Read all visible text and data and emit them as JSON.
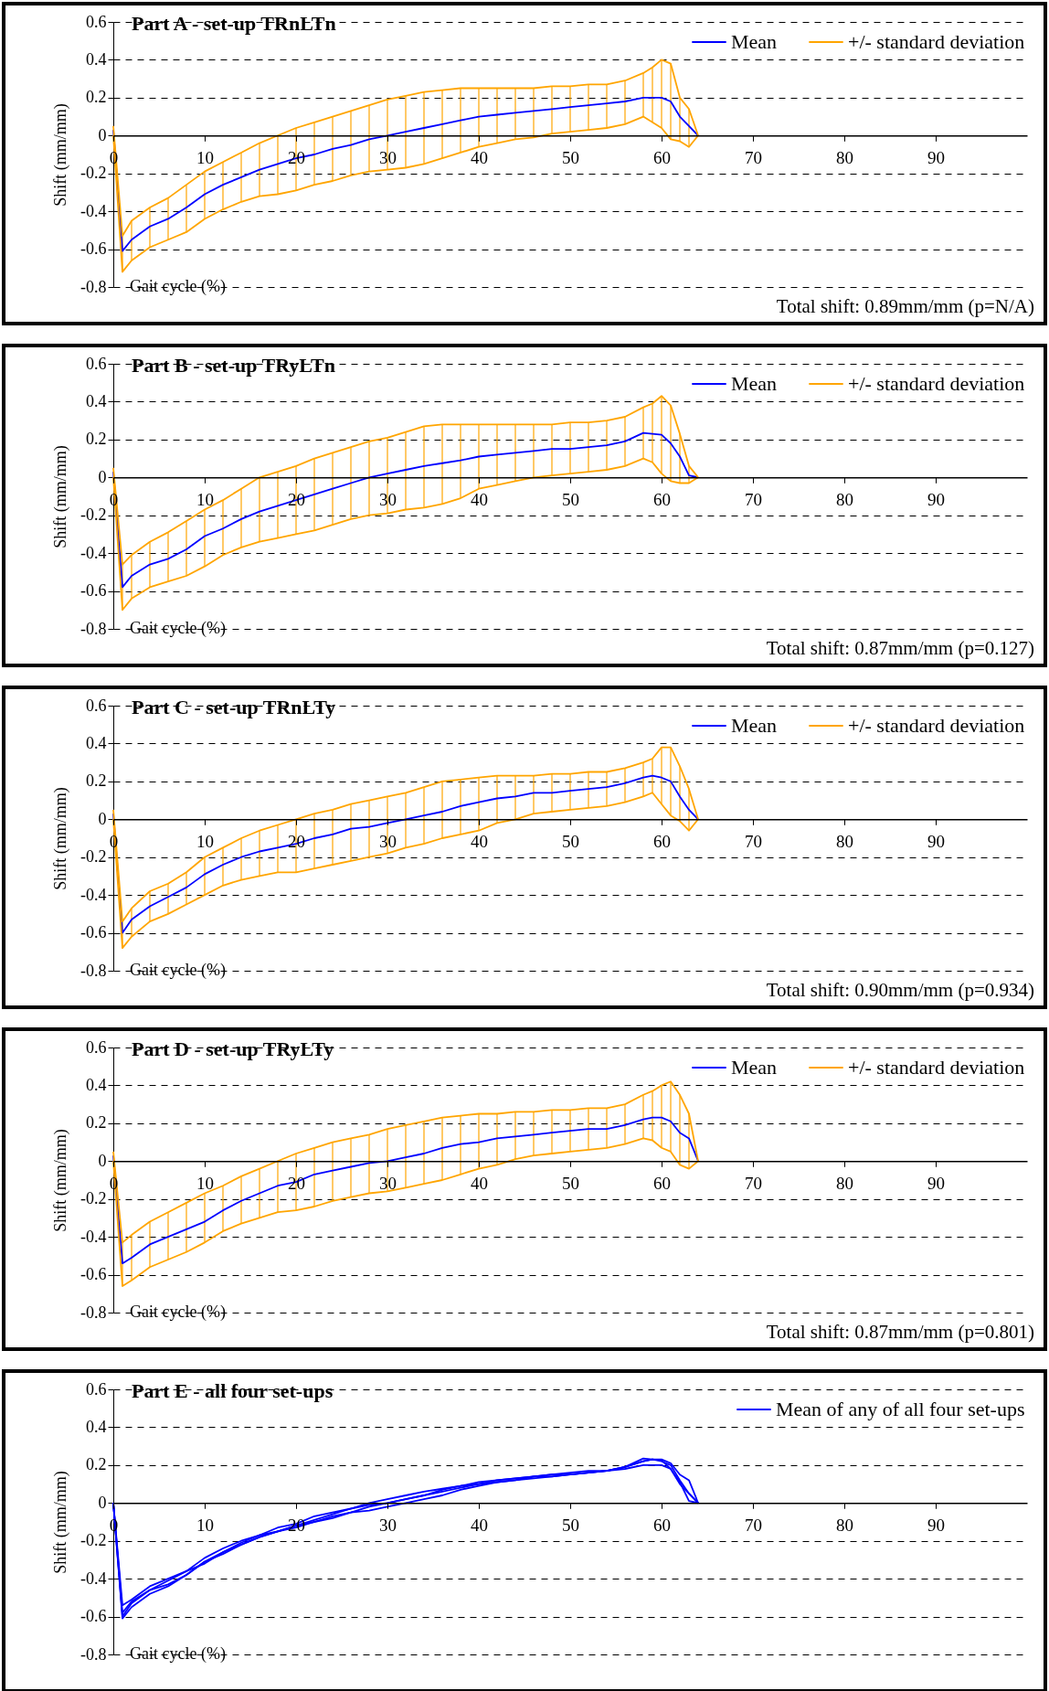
{
  "chart_data": [
    {
      "type": "line",
      "title": "Part A - set-up TRnLTn",
      "xlabel": "Gait cycle (%)",
      "ylabel": "Shift (mm/mm)",
      "annotations": [
        "Total shift:   0.89mm/mm   (p=N/A)"
      ],
      "x": [
        0,
        1,
        2,
        4,
        6,
        8,
        10,
        12,
        14,
        16,
        18,
        20,
        22,
        24,
        26,
        28,
        30,
        32,
        34,
        36,
        38,
        40,
        42,
        44,
        46,
        48,
        50,
        52,
        54,
        56,
        58,
        59,
        60,
        61,
        62,
        63,
        64
      ],
      "series": [
        {
          "name": "Mean",
          "color": "#0000ff",
          "values": [
            0.03,
            -0.61,
            -0.55,
            -0.48,
            -0.44,
            -0.38,
            -0.31,
            -0.26,
            -0.22,
            -0.18,
            -0.15,
            -0.12,
            -0.1,
            -0.07,
            -0.05,
            -0.02,
            0.0,
            0.02,
            0.04,
            0.06,
            0.08,
            0.1,
            0.11,
            0.12,
            0.13,
            0.14,
            0.15,
            0.16,
            0.17,
            0.18,
            0.2,
            0.2,
            0.2,
            0.18,
            0.1,
            0.05,
            0.0
          ]
        },
        {
          "name": "+/- standard deviation",
          "color": "#ffa500",
          "values": [
            0.05,
            -0.53,
            -0.45,
            -0.38,
            -0.33,
            -0.26,
            -0.19,
            -0.14,
            -0.09,
            -0.04,
            0.0,
            0.04,
            0.07,
            0.1,
            0.13,
            0.16,
            0.19,
            0.21,
            0.23,
            0.24,
            0.25,
            0.25,
            0.25,
            0.25,
            0.25,
            0.26,
            0.26,
            0.27,
            0.27,
            0.29,
            0.33,
            0.36,
            0.4,
            0.38,
            0.2,
            0.14,
            0.0
          ],
          "errors": [
            null,
            [
              -0.72,
              -0.53
            ],
            [
              -0.66,
              -0.45
            ],
            [
              -0.59,
              -0.38
            ],
            [
              -0.55,
              -0.33
            ],
            [
              -0.51,
              -0.26
            ],
            [
              -0.44,
              -0.19
            ],
            [
              -0.39,
              -0.14
            ],
            [
              -0.35,
              -0.09
            ],
            [
              -0.32,
              -0.04
            ],
            [
              -0.31,
              0.0
            ],
            [
              -0.29,
              0.04
            ],
            [
              -0.26,
              0.07
            ],
            [
              -0.24,
              0.1
            ],
            [
              -0.21,
              0.13
            ],
            [
              -0.19,
              0.16
            ],
            [
              -0.18,
              0.19
            ],
            [
              -0.17,
              0.21
            ],
            [
              -0.15,
              0.23
            ],
            [
              -0.12,
              0.24
            ],
            [
              -0.09,
              0.25
            ],
            [
              -0.06,
              0.25
            ],
            [
              -0.04,
              0.25
            ],
            [
              -0.02,
              0.25
            ],
            [
              -0.01,
              0.25
            ],
            [
              0.01,
              0.26
            ],
            [
              0.02,
              0.26
            ],
            [
              0.03,
              0.27
            ],
            [
              0.04,
              0.27
            ],
            [
              0.06,
              0.29
            ],
            [
              0.1,
              0.33
            ],
            [
              0.07,
              0.36
            ],
            [
              0.04,
              0.4
            ],
            [
              -0.02,
              0.38
            ],
            [
              -0.03,
              0.2
            ],
            [
              -0.06,
              0.14
            ],
            null
          ]
        },
        {
          "color": "#ffa500",
          "values": [
            0.0,
            -0.72,
            -0.66,
            -0.59,
            -0.55,
            -0.51,
            -0.44,
            -0.39,
            -0.35,
            -0.32,
            -0.31,
            -0.29,
            -0.26,
            -0.24,
            -0.21,
            -0.19,
            -0.18,
            -0.17,
            -0.15,
            -0.12,
            -0.09,
            -0.06,
            -0.04,
            -0.02,
            -0.01,
            0.01,
            0.02,
            0.03,
            0.04,
            0.06,
            0.1,
            0.07,
            0.04,
            -0.02,
            -0.03,
            -0.06,
            0.0
          ]
        }
      ],
      "xlim": [
        0,
        100
      ],
      "xticks": [
        0,
        10,
        20,
        30,
        40,
        50,
        60,
        70,
        80,
        90
      ],
      "ylim": [
        -0.8,
        0.6
      ],
      "yticks": [
        -0.8,
        -0.6,
        -0.4,
        -0.2,
        0,
        0.2,
        0.4,
        0.6
      ],
      "grid": "y",
      "legend": "top right"
    },
    {
      "type": "line",
      "title": "Part B - set-up TRyLTn",
      "xlabel": "Gait cycle (%)",
      "ylabel": "Shift (mm/mm)",
      "annotations": [
        "Total shift:   0.87mm/mm   (p=0.127)"
      ],
      "x": [
        0,
        1,
        2,
        4,
        6,
        8,
        10,
        12,
        14,
        16,
        18,
        20,
        22,
        24,
        26,
        28,
        30,
        32,
        34,
        36,
        38,
        40,
        42,
        44,
        46,
        48,
        50,
        52,
        54,
        56,
        58,
        59,
        60,
        61,
        62,
        63,
        64
      ],
      "series": [
        {
          "name": "Mean",
          "color": "#0000ff",
          "values": [
            0.03,
            -0.58,
            -0.52,
            -0.46,
            -0.43,
            -0.38,
            -0.31,
            -0.27,
            -0.22,
            -0.18,
            -0.15,
            -0.12,
            -0.09,
            -0.06,
            -0.03,
            0.0,
            0.02,
            0.04,
            0.06,
            0.075,
            0.09,
            0.11,
            0.12,
            0.13,
            0.14,
            0.15,
            0.15,
            0.16,
            0.17,
            0.19,
            0.235,
            0.23,
            0.225,
            0.18,
            0.11,
            0.01,
            0.0
          ]
        },
        {
          "name": "+/- standard deviation",
          "color": "#ffa500",
          "values": [
            0.05,
            -0.46,
            -0.41,
            -0.34,
            -0.29,
            -0.23,
            -0.17,
            -0.12,
            -0.06,
            0.0,
            0.03,
            0.06,
            0.1,
            0.13,
            0.16,
            0.19,
            0.21,
            0.24,
            0.27,
            0.28,
            0.28,
            0.28,
            0.28,
            0.28,
            0.28,
            0.28,
            0.29,
            0.29,
            0.3,
            0.32,
            0.37,
            0.39,
            0.43,
            0.38,
            0.23,
            0.06,
            0.0
          ],
          "errors": [
            null,
            [
              -0.7,
              -0.46
            ],
            [
              -0.64,
              -0.41
            ],
            [
              -0.58,
              -0.34
            ],
            [
              -0.55,
              -0.29
            ],
            [
              -0.52,
              -0.23
            ],
            [
              -0.47,
              -0.17
            ],
            [
              -0.41,
              -0.12
            ],
            [
              -0.37,
              -0.06
            ],
            [
              -0.34,
              0.0
            ],
            [
              -0.32,
              0.03
            ],
            [
              -0.3,
              0.06
            ],
            [
              -0.28,
              0.1
            ],
            [
              -0.25,
              0.13
            ],
            [
              -0.22,
              0.16
            ],
            [
              -0.2,
              0.19
            ],
            [
              -0.19,
              0.21
            ],
            [
              -0.17,
              0.24
            ],
            [
              -0.16,
              0.27
            ],
            [
              -0.14,
              0.28
            ],
            [
              -0.11,
              0.28
            ],
            [
              -0.06,
              0.28
            ],
            [
              -0.04,
              0.28
            ],
            [
              -0.02,
              0.28
            ],
            [
              0.0,
              0.28
            ],
            [
              0.01,
              0.28
            ],
            [
              0.02,
              0.29
            ],
            [
              0.03,
              0.29
            ],
            [
              0.04,
              0.3
            ],
            [
              0.06,
              0.32
            ],
            [
              0.1,
              0.37
            ],
            [
              0.08,
              0.39
            ],
            [
              0.02,
              0.43
            ],
            [
              -0.02,
              0.38
            ],
            [
              -0.03,
              0.23
            ],
            [
              -0.03,
              0.06
            ],
            null
          ]
        },
        {
          "color": "#ffa500",
          "values": [
            0.0,
            -0.7,
            -0.64,
            -0.58,
            -0.55,
            -0.52,
            -0.47,
            -0.41,
            -0.37,
            -0.34,
            -0.32,
            -0.3,
            -0.28,
            -0.25,
            -0.22,
            -0.2,
            -0.19,
            -0.17,
            -0.16,
            -0.14,
            -0.11,
            -0.06,
            -0.04,
            -0.02,
            0.0,
            0.01,
            0.02,
            0.03,
            0.04,
            0.06,
            0.1,
            0.08,
            0.02,
            -0.02,
            -0.03,
            -0.03,
            0.0
          ]
        }
      ],
      "xlim": [
        0,
        100
      ],
      "xticks": [
        0,
        10,
        20,
        30,
        40,
        50,
        60,
        70,
        80,
        90
      ],
      "ylim": [
        -0.8,
        0.6
      ],
      "yticks": [
        -0.8,
        -0.6,
        -0.4,
        -0.2,
        0,
        0.2,
        0.4,
        0.6
      ],
      "grid": "y",
      "legend": "top right"
    },
    {
      "type": "line",
      "title": "Part C - set-up TRnLTy",
      "xlabel": "Gait cycle (%)",
      "ylabel": "Shift (mm/mm)",
      "annotations": [
        "Total shift:   0.90mm/mm   (p=0.934)"
      ],
      "x": [
        0,
        1,
        2,
        4,
        6,
        8,
        10,
        12,
        14,
        16,
        18,
        20,
        22,
        24,
        26,
        28,
        30,
        32,
        34,
        36,
        38,
        40,
        42,
        44,
        46,
        48,
        50,
        52,
        54,
        56,
        58,
        59,
        60,
        61,
        62,
        63,
        64
      ],
      "series": [
        {
          "name": "Mean",
          "color": "#0000ff",
          "values": [
            0.03,
            -0.6,
            -0.53,
            -0.46,
            -0.41,
            -0.36,
            -0.29,
            -0.24,
            -0.2,
            -0.17,
            -0.15,
            -0.13,
            -0.1,
            -0.08,
            -0.05,
            -0.04,
            -0.02,
            0.0,
            0.02,
            0.04,
            0.07,
            0.09,
            0.11,
            0.12,
            0.14,
            0.14,
            0.15,
            0.16,
            0.17,
            0.19,
            0.22,
            0.23,
            0.22,
            0.2,
            0.12,
            0.05,
            0.0
          ]
        },
        {
          "name": "+/- standard deviation",
          "color": "#ffa500",
          "values": [
            0.05,
            -0.54,
            -0.47,
            -0.38,
            -0.34,
            -0.28,
            -0.2,
            -0.15,
            -0.1,
            -0.06,
            -0.03,
            0.0,
            0.03,
            0.05,
            0.08,
            0.1,
            0.12,
            0.14,
            0.17,
            0.2,
            0.21,
            0.22,
            0.23,
            0.23,
            0.23,
            0.24,
            0.24,
            0.25,
            0.25,
            0.27,
            0.3,
            0.32,
            0.38,
            0.38,
            0.28,
            0.16,
            0.0
          ],
          "errors": [
            null,
            [
              -0.68,
              -0.54
            ],
            [
              -0.62,
              -0.47
            ],
            [
              -0.54,
              -0.38
            ],
            [
              -0.5,
              -0.34
            ],
            [
              -0.45,
              -0.28
            ],
            [
              -0.4,
              -0.2
            ],
            [
              -0.35,
              -0.15
            ],
            [
              -0.32,
              -0.1
            ],
            [
              -0.3,
              -0.06
            ],
            [
              -0.28,
              -0.03
            ],
            [
              -0.28,
              0.0
            ],
            [
              -0.26,
              0.03
            ],
            [
              -0.24,
              0.05
            ],
            [
              -0.22,
              0.08
            ],
            [
              -0.2,
              0.1
            ],
            [
              -0.18,
              0.12
            ],
            [
              -0.15,
              0.14
            ],
            [
              -0.13,
              0.17
            ],
            [
              -0.1,
              0.2
            ],
            [
              -0.08,
              0.21
            ],
            [
              -0.06,
              0.22
            ],
            [
              -0.02,
              0.23
            ],
            [
              0.0,
              0.23
            ],
            [
              0.03,
              0.23
            ],
            [
              0.04,
              0.24
            ],
            [
              0.05,
              0.24
            ],
            [
              0.06,
              0.25
            ],
            [
              0.07,
              0.25
            ],
            [
              0.09,
              0.27
            ],
            [
              0.12,
              0.3
            ],
            [
              0.14,
              0.32
            ],
            [
              0.08,
              0.38
            ],
            [
              0.02,
              0.38
            ],
            [
              -0.01,
              0.28
            ],
            [
              -0.06,
              0.16
            ],
            null
          ]
        },
        {
          "color": "#ffa500",
          "values": [
            0.0,
            -0.68,
            -0.62,
            -0.54,
            -0.5,
            -0.45,
            -0.4,
            -0.35,
            -0.32,
            -0.3,
            -0.28,
            -0.28,
            -0.26,
            -0.24,
            -0.22,
            -0.2,
            -0.18,
            -0.15,
            -0.13,
            -0.1,
            -0.08,
            -0.06,
            -0.02,
            0.0,
            0.03,
            0.04,
            0.05,
            0.06,
            0.07,
            0.09,
            0.12,
            0.14,
            0.08,
            0.02,
            -0.01,
            -0.06,
            0.0
          ]
        }
      ],
      "xlim": [
        0,
        100
      ],
      "xticks": [
        0,
        10,
        20,
        30,
        40,
        50,
        60,
        70,
        80,
        90
      ],
      "ylim": [
        -0.8,
        0.6
      ],
      "yticks": [
        -0.8,
        -0.6,
        -0.4,
        -0.2,
        0,
        0.2,
        0.4,
        0.6
      ],
      "grid": "y",
      "legend": "top right"
    },
    {
      "type": "line",
      "title": "Part D - set-up TRyLTy",
      "xlabel": "Gait cycle (%)",
      "ylabel": "Shift (mm/mm)",
      "annotations": [
        "Total shift:   0.87mm/mm   (p=0.801)"
      ],
      "x": [
        0,
        1,
        2,
        4,
        6,
        8,
        10,
        12,
        14,
        16,
        18,
        20,
        22,
        24,
        26,
        28,
        30,
        32,
        34,
        36,
        38,
        40,
        42,
        44,
        46,
        48,
        50,
        52,
        54,
        56,
        58,
        59,
        60,
        61,
        62,
        63,
        64
      ],
      "series": [
        {
          "name": "Mean",
          "color": "#0000ff",
          "values": [
            0.03,
            -0.54,
            -0.51,
            -0.44,
            -0.4,
            -0.36,
            -0.32,
            -0.26,
            -0.21,
            -0.17,
            -0.13,
            -0.11,
            -0.07,
            -0.05,
            -0.03,
            -0.01,
            0.0,
            0.02,
            0.04,
            0.07,
            0.09,
            0.1,
            0.12,
            0.13,
            0.14,
            0.15,
            0.16,
            0.17,
            0.17,
            0.19,
            0.22,
            0.23,
            0.23,
            0.21,
            0.15,
            0.12,
            0.0
          ]
        },
        {
          "name": "+/- standard deviation",
          "color": "#ffa500",
          "values": [
            0.05,
            -0.43,
            -0.39,
            -0.32,
            -0.27,
            -0.22,
            -0.17,
            -0.13,
            -0.08,
            -0.04,
            0.0,
            0.04,
            0.07,
            0.1,
            0.12,
            0.14,
            0.17,
            0.19,
            0.21,
            0.23,
            0.24,
            0.25,
            0.25,
            0.26,
            0.26,
            0.27,
            0.27,
            0.28,
            0.28,
            0.3,
            0.35,
            0.37,
            0.4,
            0.42,
            0.35,
            0.25,
            0.0
          ],
          "errors": [
            null,
            [
              -0.66,
              -0.43
            ],
            [
              -0.63,
              -0.39
            ],
            [
              -0.56,
              -0.32
            ],
            [
              -0.52,
              -0.27
            ],
            [
              -0.48,
              -0.22
            ],
            [
              -0.43,
              -0.17
            ],
            [
              -0.37,
              -0.13
            ],
            [
              -0.33,
              -0.08
            ],
            [
              -0.3,
              -0.04
            ],
            [
              -0.27,
              0.0
            ],
            [
              -0.26,
              0.04
            ],
            [
              -0.24,
              0.07
            ],
            [
              -0.21,
              0.1
            ],
            [
              -0.19,
              0.12
            ],
            [
              -0.17,
              0.14
            ],
            [
              -0.16,
              0.17
            ],
            [
              -0.14,
              0.19
            ],
            [
              -0.12,
              0.21
            ],
            [
              -0.1,
              0.23
            ],
            [
              -0.07,
              0.24
            ],
            [
              -0.04,
              0.25
            ],
            [
              -0.02,
              0.25
            ],
            [
              0.01,
              0.26
            ],
            [
              0.03,
              0.26
            ],
            [
              0.04,
              0.27
            ],
            [
              0.05,
              0.27
            ],
            [
              0.06,
              0.28
            ],
            [
              0.07,
              0.28
            ],
            [
              0.09,
              0.3
            ],
            [
              0.12,
              0.35
            ],
            [
              0.11,
              0.37
            ],
            [
              0.07,
              0.4
            ],
            [
              0.05,
              0.42
            ],
            [
              -0.02,
              0.35
            ],
            [
              -0.04,
              0.25
            ],
            null
          ]
        },
        {
          "color": "#ffa500",
          "values": [
            0.0,
            -0.66,
            -0.63,
            -0.56,
            -0.52,
            -0.48,
            -0.43,
            -0.37,
            -0.33,
            -0.3,
            -0.27,
            -0.26,
            -0.24,
            -0.21,
            -0.19,
            -0.17,
            -0.16,
            -0.14,
            -0.12,
            -0.1,
            -0.07,
            -0.04,
            -0.02,
            0.01,
            0.03,
            0.04,
            0.05,
            0.06,
            0.07,
            0.09,
            0.12,
            0.11,
            0.07,
            0.05,
            -0.02,
            -0.04,
            0.0
          ]
        }
      ],
      "xlim": [
        0,
        100
      ],
      "xticks": [
        0,
        10,
        20,
        30,
        40,
        50,
        60,
        70,
        80,
        90
      ],
      "ylim": [
        -0.8,
        0.6
      ],
      "yticks": [
        -0.8,
        -0.6,
        -0.4,
        -0.2,
        0,
        0.2,
        0.4,
        0.6
      ],
      "grid": "y",
      "legend": "top right"
    },
    {
      "type": "line",
      "title": "Part E - all four set-ups",
      "xlabel": "Gait cycle (%)",
      "ylabel": "Shift (mm/mm)",
      "x": [
        0,
        1,
        2,
        4,
        6,
        8,
        10,
        12,
        14,
        16,
        18,
        20,
        22,
        24,
        26,
        28,
        30,
        32,
        34,
        36,
        38,
        40,
        42,
        44,
        46,
        48,
        50,
        52,
        54,
        56,
        58,
        59,
        60,
        61,
        62,
        63,
        64
      ],
      "series": [
        {
          "name": "Mean of any of all four set-ups",
          "color": "#0000ff",
          "values": [
            0.0,
            -0.61,
            -0.55,
            -0.48,
            -0.44,
            -0.38,
            -0.31,
            -0.26,
            -0.22,
            -0.18,
            -0.15,
            -0.12,
            -0.1,
            -0.07,
            -0.05,
            -0.02,
            0.0,
            0.02,
            0.04,
            0.06,
            0.08,
            0.1,
            0.11,
            0.12,
            0.13,
            0.14,
            0.15,
            0.16,
            0.17,
            0.18,
            0.2,
            0.2,
            0.2,
            0.18,
            0.1,
            0.05,
            0.0
          ]
        },
        {
          "color": "#0000ff",
          "values": [
            0.0,
            -0.58,
            -0.52,
            -0.46,
            -0.43,
            -0.38,
            -0.31,
            -0.27,
            -0.22,
            -0.18,
            -0.15,
            -0.12,
            -0.09,
            -0.06,
            -0.03,
            0.0,
            0.02,
            0.04,
            0.06,
            0.075,
            0.09,
            0.11,
            0.12,
            0.13,
            0.14,
            0.15,
            0.15,
            0.16,
            0.17,
            0.19,
            0.235,
            0.23,
            0.225,
            0.18,
            0.11,
            0.01,
            0.0
          ]
        },
        {
          "color": "#0000ff",
          "values": [
            0.0,
            -0.6,
            -0.53,
            -0.46,
            -0.41,
            -0.36,
            -0.29,
            -0.24,
            -0.2,
            -0.17,
            -0.15,
            -0.13,
            -0.1,
            -0.08,
            -0.05,
            -0.04,
            -0.02,
            0.0,
            0.02,
            0.04,
            0.07,
            0.09,
            0.11,
            0.12,
            0.14,
            0.14,
            0.15,
            0.16,
            0.17,
            0.19,
            0.22,
            0.23,
            0.22,
            0.2,
            0.12,
            0.05,
            0.0
          ]
        },
        {
          "color": "#0000ff",
          "values": [
            0.0,
            -0.54,
            -0.51,
            -0.44,
            -0.4,
            -0.36,
            -0.32,
            -0.26,
            -0.21,
            -0.17,
            -0.13,
            -0.11,
            -0.07,
            -0.05,
            -0.03,
            -0.01,
            0.0,
            0.02,
            0.04,
            0.07,
            0.09,
            0.1,
            0.12,
            0.13,
            0.14,
            0.15,
            0.16,
            0.17,
            0.17,
            0.19,
            0.22,
            0.23,
            0.23,
            0.21,
            0.15,
            0.12,
            0.0
          ]
        }
      ],
      "xlim": [
        0,
        100
      ],
      "xticks": [
        0,
        10,
        20,
        30,
        40,
        50,
        60,
        70,
        80,
        90
      ],
      "ylim": [
        -0.8,
        0.6
      ],
      "yticks": [
        -0.8,
        -0.6,
        -0.4,
        -0.2,
        0,
        0.2,
        0.4,
        0.6
      ],
      "grid": "y",
      "legend": "top right"
    }
  ]
}
